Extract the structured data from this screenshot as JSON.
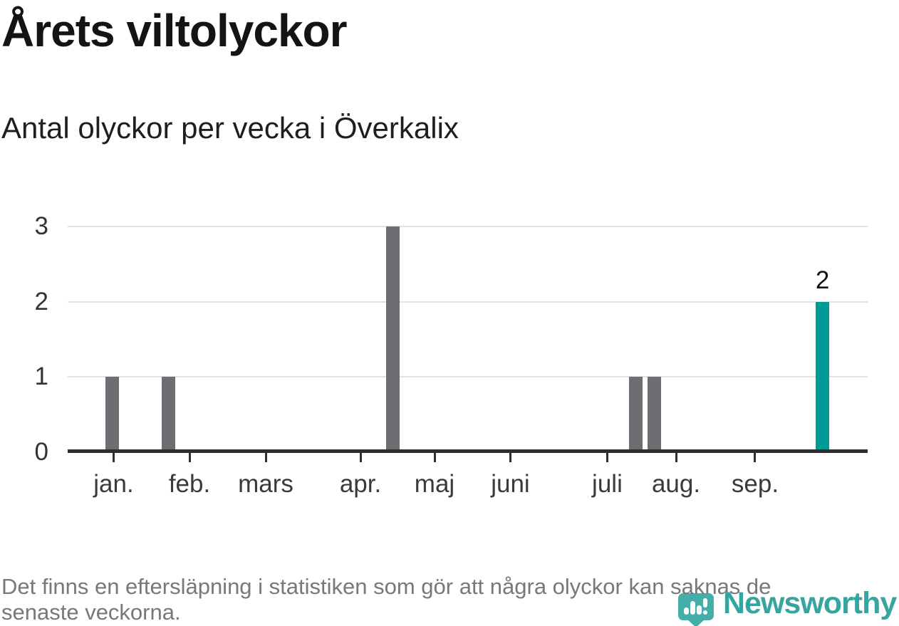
{
  "page": {
    "title": "Årets viltolyckor",
    "subtitle": "Antal olyckor per vecka i Överkalix"
  },
  "footer": {
    "note": "Det finns en eftersläpning i statistiken som gör att några olyckor kan saknas de senaste veckorna.",
    "note_lines": [
      "Det finns en eftersläpning i statistiken som gör att några olyckor kan saknas de",
      "senaste veckorna."
    ],
    "brand": "Newsworthy"
  },
  "colors": {
    "bar_default": "#6d6d72",
    "bar_highlight": "#009a94",
    "axis": "#2e2e2e",
    "gridline": "#e2e2e2",
    "brand_teal": "#36a5a0",
    "footer_text": "#75787c"
  },
  "chart_data": {
    "type": "bar",
    "title": "Årets viltolyckor",
    "subtitle": "Antal olyckor per vecka i Överkalix",
    "xlabel": "",
    "ylabel": "",
    "x_unit": "vecka (weekly bars, jan–okt)",
    "y_ticks": [
      0,
      1,
      2,
      3
    ],
    "ylim": [
      0,
      3
    ],
    "grid": "horizontal",
    "legend": "none",
    "month_ticks": [
      {
        "label": "jan.",
        "pos": 0.0574
      },
      {
        "label": "feb.",
        "pos": 0.1523
      },
      {
        "label": "mars",
        "pos": 0.2476
      },
      {
        "label": "apr.",
        "pos": 0.366
      },
      {
        "label": "maj",
        "pos": 0.4586
      },
      {
        "label": "juni",
        "pos": 0.5534
      },
      {
        "label": "juli",
        "pos": 0.6745
      },
      {
        "label": "aug.",
        "pos": 0.7605
      },
      {
        "label": "sep.",
        "pos": 0.8593
      }
    ],
    "bars": [
      {
        "pos": 0.0557,
        "approx_time": "mitten av januari",
        "value": 1,
        "highlight": false
      },
      {
        "pos": 0.1264,
        "approx_time": "mitten av februari",
        "value": 1,
        "highlight": false
      },
      {
        "pos": 0.4069,
        "approx_time": "mitten av april",
        "value": 3,
        "highlight": false
      },
      {
        "pos": 0.7102,
        "approx_time": "slutet av juli",
        "value": 1,
        "highlight": false
      },
      {
        "pos": 0.7333,
        "approx_time": "slutet av juli",
        "value": 1,
        "highlight": false
      },
      {
        "pos": 0.9435,
        "approx_time": "slutet av september",
        "value": 2,
        "highlight": true,
        "label": "2"
      }
    ]
  }
}
